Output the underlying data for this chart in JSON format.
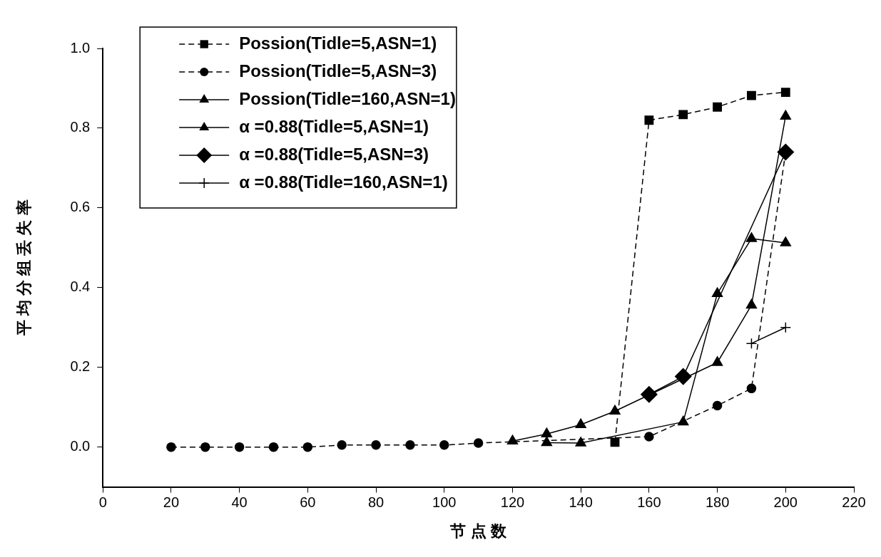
{
  "chart_data": {
    "type": "line",
    "xlabel": "节 点 数",
    "ylabel": "平 均 分 组 丢 失 率",
    "x": [
      20,
      30,
      40,
      50,
      60,
      70,
      80,
      90,
      100,
      110,
      120,
      130,
      140,
      150,
      160,
      170,
      180,
      190,
      200
    ],
    "series": [
      {
        "name": "Possion(Tidle=5,ASN=1)",
        "color": "#000000",
        "marker": "square",
        "line_style": "dashed",
        "values": [
          null,
          null,
          null,
          null,
          null,
          null,
          null,
          null,
          null,
          null,
          null,
          null,
          null,
          0.012,
          0.82,
          0.834,
          0.853,
          0.882,
          0.89
        ]
      },
      {
        "name": "Possion(Tidle=5,ASN=3)",
        "color": "#000000",
        "marker": "circle",
        "line_style": "dashed",
        "values": [
          0,
          0,
          0,
          0,
          0,
          0.005,
          0.005,
          0.005,
          0.005,
          0.01,
          null,
          null,
          null,
          null,
          0.026,
          null,
          0.104,
          0.147,
          0.74
        ]
      },
      {
        "name": "Possion(Tidle=160,ASN=1)",
        "color": "#000000",
        "marker": "triangle",
        "line_style": "solid",
        "values": [
          null,
          null,
          null,
          null,
          null,
          null,
          null,
          null,
          null,
          null,
          null,
          0.011,
          0.01,
          null,
          null,
          0.063,
          0.385,
          0.523,
          0.512
        ]
      },
      {
        "name": "α =0.88(Tidle=5,ASN=1)",
        "color": "#000000",
        "marker": "triangle",
        "line_style": "solid",
        "values": [
          null,
          null,
          null,
          null,
          null,
          null,
          null,
          null,
          null,
          null,
          0.015,
          0.033,
          0.056,
          0.09,
          null,
          null,
          0.212,
          0.356,
          0.83
        ]
      },
      {
        "name": "α =0.88(Tidle=5,ASN=3)",
        "color": "#000000",
        "marker": "diamond",
        "line_style": "solid",
        "values": [
          null,
          null,
          null,
          null,
          null,
          null,
          null,
          null,
          null,
          null,
          null,
          null,
          null,
          null,
          0.132,
          0.177,
          null,
          null,
          0.74
        ]
      },
      {
        "name": "α =0.88(Tidle=160,ASN=1)",
        "color": "#000000",
        "marker": "cross",
        "line_style": "solid",
        "values": [
          null,
          null,
          null,
          null,
          null,
          null,
          null,
          null,
          null,
          null,
          null,
          null,
          null,
          null,
          null,
          null,
          null,
          0.26,
          0.3
        ]
      }
    ],
    "xlim": [
      0,
      220
    ],
    "xticks": [
      0,
      20,
      40,
      60,
      80,
      100,
      120,
      140,
      160,
      180,
      200,
      220
    ],
    "ylim": [
      -0.1,
      1.0
    ],
    "yticks": [
      {
        "value": 0,
        "label": "0.0"
      },
      {
        "value": 0.2,
        "label": "0.2"
      },
      {
        "value": 0.4,
        "label": "0.4"
      },
      {
        "value": 0.6,
        "label": "0.6"
      },
      {
        "value": 0.8,
        "label": "0.8"
      },
      {
        "value": 1.0,
        "label": "1.0"
      }
    ],
    "grid": false,
    "legend": "top left"
  }
}
